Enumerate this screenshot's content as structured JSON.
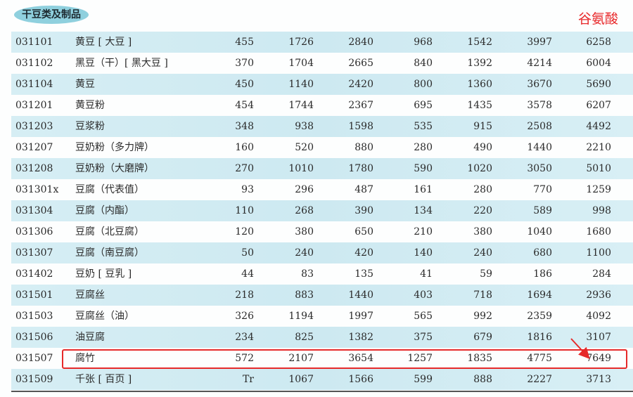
{
  "category": "干豆类及制品",
  "column_label": "谷氨酸",
  "highlight_color": "#e62a2a",
  "stripe_color": "#d3ecf3",
  "highlighted_row_code": "031507",
  "rows": [
    {
      "code": "031101",
      "name": "黄豆 [ 大豆 ]",
      "values": [
        "455",
        "1726",
        "2840",
        "968",
        "1542",
        "3997",
        "6258"
      ]
    },
    {
      "code": "031102",
      "name": "黑豆（干）[ 黑大豆 ]",
      "values": [
        "370",
        "1704",
        "2665",
        "840",
        "1392",
        "4214",
        "6004"
      ]
    },
    {
      "code": "031104",
      "name": "黄豆",
      "values": [
        "450",
        "1140",
        "2420",
        "800",
        "1360",
        "3670",
        "5690"
      ]
    },
    {
      "code": "031201",
      "name": "黄豆粉",
      "values": [
        "454",
        "1744",
        "2367",
        "695",
        "1435",
        "3578",
        "6207"
      ]
    },
    {
      "code": "031203",
      "name": "豆浆粉",
      "values": [
        "348",
        "938",
        "1598",
        "535",
        "915",
        "2508",
        "4492"
      ]
    },
    {
      "code": "031207",
      "name": "豆奶粉（多力牌）",
      "values": [
        "160",
        "520",
        "880",
        "280",
        "490",
        "1440",
        "2210"
      ]
    },
    {
      "code": "031208",
      "name": "豆奶粉（大磨牌）",
      "values": [
        "270",
        "1010",
        "1780",
        "590",
        "1020",
        "3050",
        "5010"
      ]
    },
    {
      "code": "031301x",
      "name": "豆腐（代表值）",
      "values": [
        "93",
        "296",
        "487",
        "161",
        "280",
        "770",
        "1259"
      ]
    },
    {
      "code": "031304",
      "name": "豆腐（内酯）",
      "values": [
        "110",
        "268",
        "390",
        "134",
        "220",
        "589",
        "998"
      ]
    },
    {
      "code": "031306",
      "name": "豆腐（北豆腐）",
      "values": [
        "120",
        "380",
        "650",
        "210",
        "380",
        "1040",
        "1680"
      ]
    },
    {
      "code": "031307",
      "name": "豆腐（南豆腐）",
      "values": [
        "50",
        "240",
        "420",
        "140",
        "240",
        "680",
        "1100"
      ]
    },
    {
      "code": "031402",
      "name": "豆奶 [ 豆乳 ]",
      "values": [
        "44",
        "83",
        "135",
        "41",
        "59",
        "186",
        "284"
      ]
    },
    {
      "code": "031501",
      "name": "豆腐丝",
      "values": [
        "218",
        "883",
        "1440",
        "403",
        "718",
        "1694",
        "2936"
      ]
    },
    {
      "code": "031503",
      "name": "豆腐丝（油）",
      "values": [
        "326",
        "1194",
        "1997",
        "565",
        "992",
        "2359",
        "4092"
      ]
    },
    {
      "code": "031506",
      "name": "油豆腐",
      "values": [
        "234",
        "825",
        "1382",
        "375",
        "679",
        "1816",
        "3107"
      ]
    },
    {
      "code": "031507",
      "name": "腐竹",
      "values": [
        "572",
        "2107",
        "3654",
        "1257",
        "1835",
        "4775",
        "7649"
      ]
    },
    {
      "code": "031509",
      "name": "千张 [ 百页 ]",
      "values": [
        "Tr",
        "1067",
        "1566",
        "599",
        "888",
        "2227",
        "3713"
      ]
    }
  ]
}
